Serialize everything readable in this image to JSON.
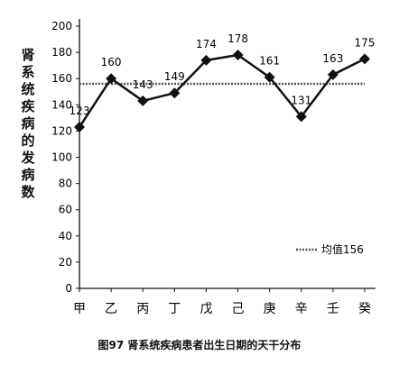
{
  "chart_data": {
    "type": "line",
    "categories": [
      "甲",
      "乙",
      "丙",
      "丁",
      "戊",
      "己",
      "庚",
      "辛",
      "壬",
      "癸"
    ],
    "series": [
      {
        "values": [
          123,
          160,
          143,
          149,
          174,
          178,
          161,
          131,
          163,
          175
        ]
      }
    ],
    "reference_line": {
      "label": "均值156",
      "value": 156
    },
    "ylabel": "肾系统疾病的发病数",
    "ylim": [
      0,
      200
    ],
    "yticks": [
      0,
      20,
      40,
      60,
      80,
      100,
      120,
      140,
      160,
      180,
      200
    ],
    "grid": false,
    "legend_position": "right",
    "caption": "图97 肾系统疾病患者出生日期的天干分布"
  },
  "colors": {
    "line": "#111111",
    "marker": "#111111",
    "reference": "#555555"
  }
}
